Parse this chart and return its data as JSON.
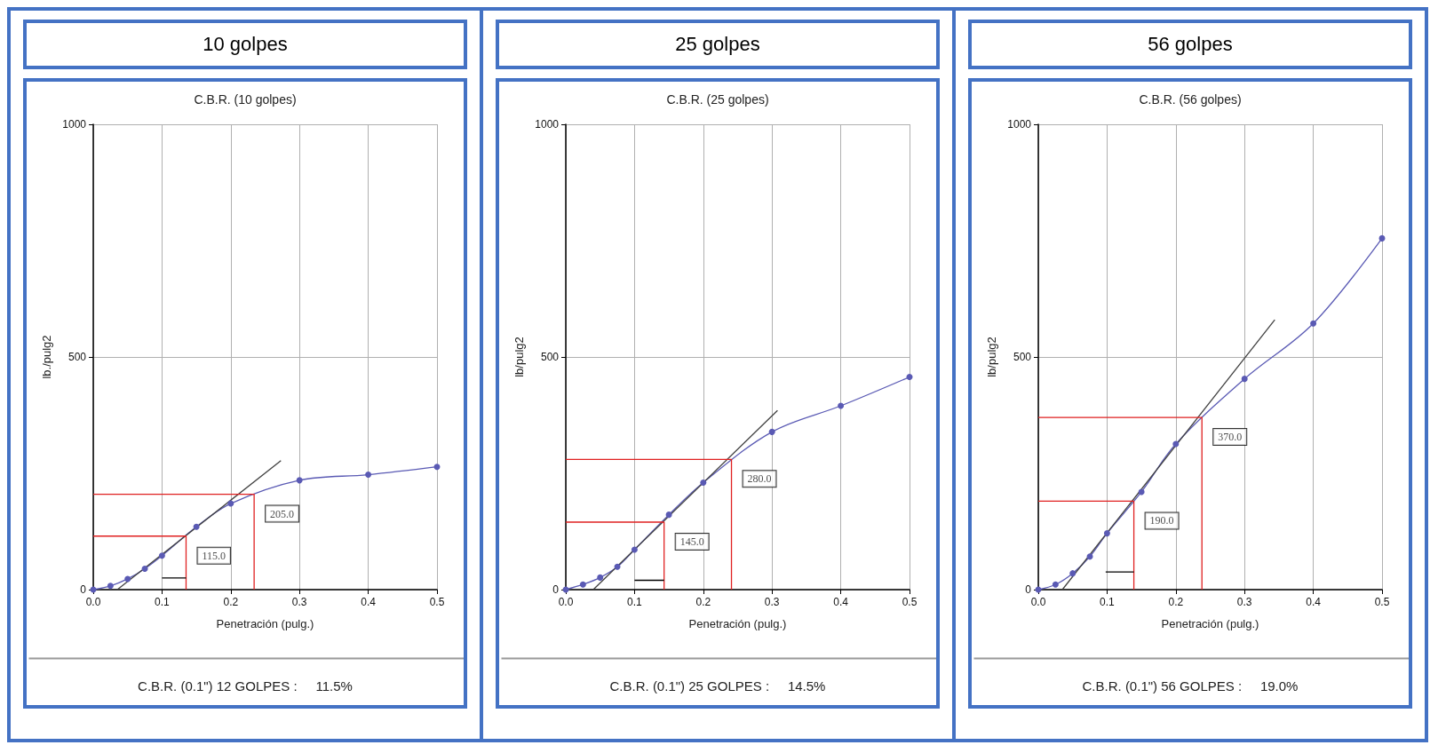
{
  "chart_data": [
    {
      "type": "line",
      "title": "10 golpes",
      "subtitle": "C.B.R. (10 golpes)",
      "xlabel": "Penetración (pulg.)",
      "ylabel": "lb./pulg2",
      "xlim": [
        0,
        0.5
      ],
      "ylim": [
        0,
        1000
      ],
      "xticks": [
        {
          "value": 0,
          "label": "0.0"
        },
        {
          "value": 0.1,
          "label": "0.1"
        },
        {
          "value": 0.2,
          "label": "0.2"
        },
        {
          "value": 0.3,
          "label": "0.3"
        },
        {
          "value": 0.4,
          "label": "0.4"
        },
        {
          "value": 0.5,
          "label": "0.5"
        }
      ],
      "yticks": [
        0,
        500,
        1000
      ],
      "grid": true,
      "series": [
        {
          "color": "#5a5ab4",
          "marker": "circle",
          "x": [
            0,
            0.025,
            0.05,
            0.075,
            0.1,
            0.15,
            0.2,
            0.3,
            0.4,
            0.5
          ],
          "values": [
            0,
            8,
            23,
            45,
            73,
            135,
            185,
            235,
            247,
            264
          ]
        },
        {
          "color": "#404040",
          "marker": "none",
          "x": [
            0.035,
            0.273
          ],
          "values": [
            0,
            277
          ]
        },
        {
          "color": "#e02020",
          "marker": "none",
          "x": [
            0,
            0.135,
            0.135
          ],
          "values": [
            115,
            115,
            0
          ]
        },
        {
          "color": "#e02020",
          "marker": "none",
          "x": [
            0,
            0.234,
            0.234
          ],
          "values": [
            205,
            205,
            0
          ]
        },
        {
          "color": "#000000",
          "marker": "none",
          "x": [
            0.1,
            0.135
          ],
          "values": [
            25,
            25
          ]
        }
      ],
      "annotations": [
        {
          "text": "115.0",
          "x": 0.135,
          "y": 115
        },
        {
          "text": "205.0",
          "x": 0.234,
          "y": 205
        },
        "C.B.R. (0.1\") 12 GOLPES :     11.5%"
      ]
    },
    {
      "type": "line",
      "title": "25 golpes",
      "subtitle": "C.B.R. (25 golpes)",
      "xlabel": "Penetración (pulg.)",
      "ylabel": "lb/pulg2",
      "xlim": [
        0,
        0.5
      ],
      "ylim": [
        0,
        1000
      ],
      "xticks": [
        {
          "value": 0,
          "label": "0.0"
        },
        {
          "value": 0.1,
          "label": "0.1"
        },
        {
          "value": 0.2,
          "label": "0.2"
        },
        {
          "value": 0.3,
          "label": "0.3"
        },
        {
          "value": 0.4,
          "label": "0.4"
        },
        {
          "value": 0.5,
          "label": "0.5"
        }
      ],
      "yticks": [
        0,
        500,
        1000
      ],
      "grid": true,
      "series": [
        {
          "color": "#5a5ab4",
          "marker": "circle",
          "x": [
            0,
            0.025,
            0.05,
            0.075,
            0.1,
            0.15,
            0.2,
            0.3,
            0.4,
            0.5
          ],
          "values": [
            0,
            11,
            26,
            49,
            86,
            161,
            230,
            339,
            395,
            457
          ]
        },
        {
          "color": "#404040",
          "marker": "none",
          "x": [
            0.04,
            0.308
          ],
          "values": [
            0,
            385
          ]
        },
        {
          "color": "#e02020",
          "marker": "none",
          "x": [
            0,
            0.143,
            0.143
          ],
          "values": [
            145,
            145,
            0
          ]
        },
        {
          "color": "#e02020",
          "marker": "none",
          "x": [
            0,
            0.241,
            0.241
          ],
          "values": [
            280,
            280,
            0
          ]
        },
        {
          "color": "#000000",
          "marker": "none",
          "x": [
            0.1,
            0.143
          ],
          "values": [
            20,
            20
          ]
        }
      ],
      "annotations": [
        {
          "text": "145.0",
          "x": 0.143,
          "y": 145
        },
        {
          "text": "280.0",
          "x": 0.241,
          "y": 280
        },
        "C.B.R. (0.1\") 25 GOLPES :     14.5%"
      ]
    },
    {
      "type": "line",
      "title": "56 golpes",
      "subtitle": "C.B.R. (56 golpes)",
      "xlabel": "Penetración (pulg.)",
      "ylabel": "lb/pulg2",
      "xlim": [
        0,
        0.5
      ],
      "ylim": [
        0,
        1000
      ],
      "xticks": [
        {
          "value": 0,
          "label": "0.0"
        },
        {
          "value": 0.1,
          "label": "0.1"
        },
        {
          "value": 0.2,
          "label": "0.2"
        },
        {
          "value": 0.3,
          "label": "0.3"
        },
        {
          "value": 0.4,
          "label": "0.4"
        },
        {
          "value": 0.5,
          "label": "0.5"
        }
      ],
      "yticks": [
        0,
        500,
        1000
      ],
      "grid": true,
      "series": [
        {
          "color": "#5a5ab4",
          "marker": "circle",
          "x": [
            0,
            0.025,
            0.05,
            0.075,
            0.1,
            0.15,
            0.2,
            0.3,
            0.4,
            0.5
          ],
          "values": [
            0,
            11,
            35,
            71,
            121,
            210,
            313,
            453,
            572,
            755
          ]
        },
        {
          "color": "#404040",
          "marker": "none",
          "x": [
            0.035,
            0.344
          ],
          "values": [
            0,
            580
          ]
        },
        {
          "color": "#e02020",
          "marker": "none",
          "x": [
            0,
            0.139,
            0.139
          ],
          "values": [
            190,
            190,
            0
          ]
        },
        {
          "color": "#e02020",
          "marker": "none",
          "x": [
            0,
            0.238,
            0.238
          ],
          "values": [
            370,
            370,
            0
          ]
        },
        {
          "color": "#000000",
          "marker": "none",
          "x": [
            0.098,
            0.139
          ],
          "values": [
            38,
            38
          ]
        }
      ],
      "annotations": [
        {
          "text": "190.0",
          "x": 0.139,
          "y": 190
        },
        {
          "text": "370.0",
          "x": 0.238,
          "y": 370
        },
        "C.B.R. (0.1\") 56 GOLPES :     19.0%"
      ]
    }
  ]
}
